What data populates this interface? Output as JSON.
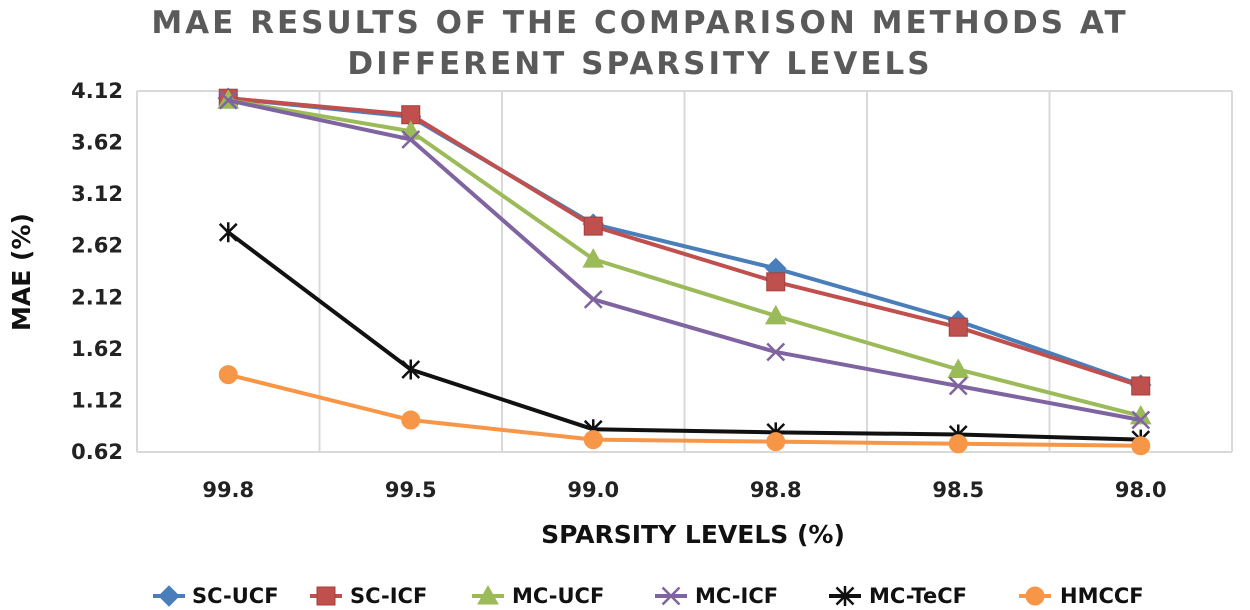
{
  "chart_data": {
    "type": "line",
    "title": [
      "MAE RESULTS OF THE COMPARISON METHODS AT",
      "DIFFERENT SPARSITY LEVELS"
    ],
    "xlabel": "SPARSITY LEVELS (%)",
    "ylabel": "MAE (%)",
    "categories": [
      "99.8",
      "99.5",
      "99.0",
      "98.8",
      "98.5",
      "98.0"
    ],
    "yticks": [
      "0.62",
      "1.12",
      "1.62",
      "2.12",
      "2.62",
      "3.12",
      "3.62",
      "4.12"
    ],
    "ylim": [
      0.62,
      4.12
    ],
    "grid": "vertical",
    "legend_position": "bottom",
    "series": [
      {
        "name": "SC-UCF",
        "color": "#4a7ebb",
        "marker": "diamond",
        "values": [
          4.05,
          3.87,
          2.83,
          2.4,
          1.89,
          1.27
        ]
      },
      {
        "name": "SC-ICF",
        "color": "#c0504d",
        "marker": "square",
        "values": [
          4.05,
          3.89,
          2.81,
          2.27,
          1.83,
          1.26
        ]
      },
      {
        "name": "MC-UCF",
        "color": "#9bbb59",
        "marker": "triangle",
        "values": [
          4.03,
          3.73,
          2.49,
          1.94,
          1.42,
          0.97
        ]
      },
      {
        "name": "MC-ICF",
        "color": "#8064a2",
        "marker": "x",
        "values": [
          4.03,
          3.65,
          2.1,
          1.59,
          1.26,
          0.93
        ]
      },
      {
        "name": "MC-TeCF",
        "color": "#111111",
        "marker": "star",
        "values": [
          2.75,
          1.42,
          0.84,
          0.81,
          0.79,
          0.74
        ]
      },
      {
        "name": "HMCCF",
        "color": "#f79646",
        "marker": "circle",
        "values": [
          1.37,
          0.93,
          0.74,
          0.72,
          0.7,
          0.68
        ]
      }
    ]
  }
}
